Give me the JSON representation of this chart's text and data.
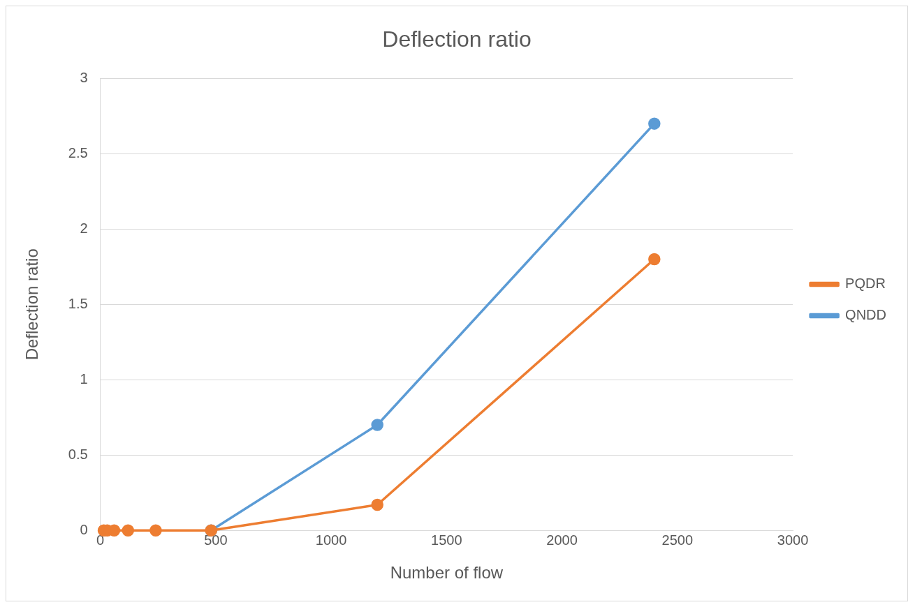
{
  "chart_data": {
    "type": "line",
    "title": "Deflection ratio",
    "xlabel": "Number of flow",
    "ylabel": "Deflection ratio",
    "x": [
      15,
      30,
      60,
      120,
      240,
      480,
      1200,
      2400
    ],
    "series": [
      {
        "name": "QNDD",
        "color": "#5b9bd5",
        "values": [
          null,
          null,
          null,
          null,
          null,
          0,
          0.7,
          2.7
        ]
      },
      {
        "name": "PQDR",
        "color": "#ed7d31",
        "values": [
          0,
          0,
          0,
          0,
          0,
          0,
          0.17,
          1.8
        ]
      }
    ],
    "xlim": [
      0,
      3000
    ],
    "xticks": [
      0,
      500,
      1000,
      1500,
      2000,
      2500,
      3000
    ],
    "ylim": [
      0,
      3
    ],
    "yticks": [
      0,
      0.5,
      1,
      1.5,
      2,
      2.5,
      3
    ],
    "grid": "y",
    "legend": "right",
    "marker": "circle",
    "line_style": "solid"
  }
}
